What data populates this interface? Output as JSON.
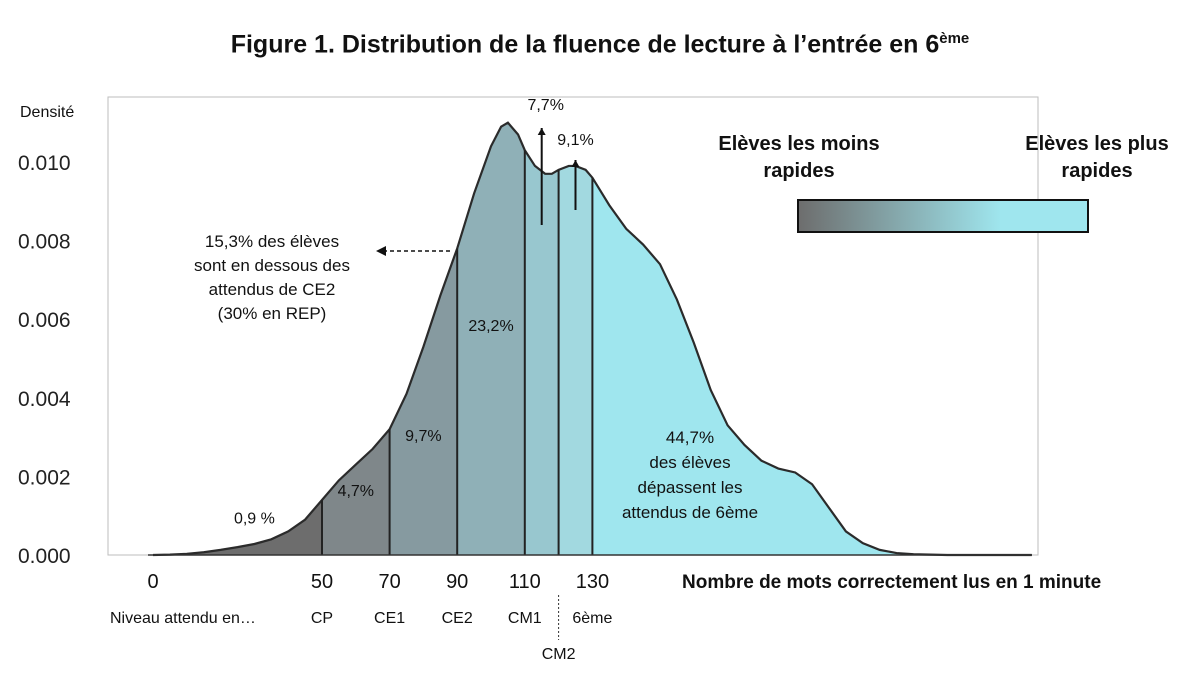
{
  "title": "Figure 1. Distribution de la fluence de lecture à l’entrée en 6",
  "title_sup": "ème",
  "chart_data": {
    "type": "area",
    "ylabel": "Densité",
    "xlabel": "Nombre de mots correctement lus en 1 minute",
    "ylim": [
      0,
      0.0112
    ],
    "yticks": [
      "0.000",
      "0.002",
      "0.004",
      "0.006",
      "0.008",
      "0.010"
    ],
    "ytick_values": [
      0,
      0.002,
      0.004,
      0.006,
      0.008,
      0.01
    ],
    "xticks": [
      0,
      50,
      70,
      90,
      110,
      130
    ],
    "x": [
      0,
      5,
      10,
      15,
      20,
      25,
      30,
      35,
      40,
      45,
      50,
      55,
      60,
      65,
      70,
      75,
      80,
      85,
      90,
      95,
      100,
      103,
      105,
      108,
      110,
      113,
      116,
      118,
      120,
      123,
      125,
      128,
      130,
      135,
      140,
      145,
      150,
      155,
      160,
      165,
      170,
      175,
      180,
      185,
      190,
      195,
      200,
      205,
      210,
      215,
      220,
      225,
      230,
      235,
      240,
      245,
      250,
      255,
      260
    ],
    "y": [
      0,
      1e-05,
      3e-05,
      7e-05,
      0.00013,
      0.0002,
      0.00028,
      0.0004,
      0.0006,
      0.0009,
      0.0014,
      0.0019,
      0.0023,
      0.0027,
      0.0032,
      0.0041,
      0.0053,
      0.0066,
      0.0078,
      0.0092,
      0.0104,
      0.0109,
      0.011,
      0.0107,
      0.0103,
      0.0099,
      0.0097,
      0.0097,
      0.0098,
      0.0099,
      0.0099,
      0.0098,
      0.0096,
      0.0089,
      0.0083,
      0.0079,
      0.0074,
      0.0065,
      0.0054,
      0.0042,
      0.0033,
      0.0028,
      0.0024,
      0.0022,
      0.0021,
      0.0018,
      0.0012,
      0.0006,
      0.0003,
      0.00013,
      5e-05,
      2e-05,
      1e-05,
      0,
      0,
      0,
      0,
      0,
      0
    ],
    "thresholds": [
      50,
      70,
      90,
      110,
      120,
      130
    ],
    "bands": [
      {
        "from": 0,
        "to": 50,
        "color": "#6d6d6d"
      },
      {
        "from": 50,
        "to": 70,
        "color": "#7f878a"
      },
      {
        "from": 70,
        "to": 90,
        "color": "#869aa0"
      },
      {
        "from": 90,
        "to": 110,
        "color": "#8fb0b7"
      },
      {
        "from": 110,
        "to": 120,
        "color": "#98c7cf"
      },
      {
        "from": 120,
        "to": 130,
        "color": "#a2d9e0"
      },
      {
        "from": 130,
        "to": 260,
        "color": "#9fe6ee"
      }
    ],
    "levels": [
      {
        "label": "Niveau attendu en…",
        "x": 0
      },
      {
        "label": "CP",
        "x": 50
      },
      {
        "label": "CE1",
        "x": 70
      },
      {
        "label": "CE2",
        "x": 90
      },
      {
        "label": "CM1",
        "x": 110
      },
      {
        "label": "6ème",
        "x": 130
      }
    ],
    "level_cm2": {
      "label": "CM2",
      "x": 120
    },
    "band_labels": [
      {
        "text": "0,9 %",
        "x": 30,
        "y": 0.0008
      },
      {
        "text": "4,7%",
        "x": 60,
        "y": 0.0015
      },
      {
        "text": "9,7%",
        "x": 80,
        "y": 0.0029
      },
      {
        "text": "23,2%",
        "x": 100,
        "y": 0.0057
      }
    ],
    "arrow_labels": [
      {
        "text": "7,7%",
        "x": 115
      },
      {
        "text": "9,1%",
        "x": 125
      }
    ],
    "annotation_left": [
      "15,3% des élèves",
      "sont en dessous des",
      "attendus de CE2",
      "(30% en REP)"
    ],
    "annotation_right": [
      "44,7%",
      "des élèves",
      "dépassent les",
      "attendus de 6ème"
    ],
    "legend": {
      "left_label": [
        "Elèves les moins",
        "rapides"
      ],
      "right_label": [
        "Elèves les plus",
        "rapides"
      ],
      "gradient_from": "#6d6d6d",
      "gradient_to": "#9fe6ee"
    }
  }
}
